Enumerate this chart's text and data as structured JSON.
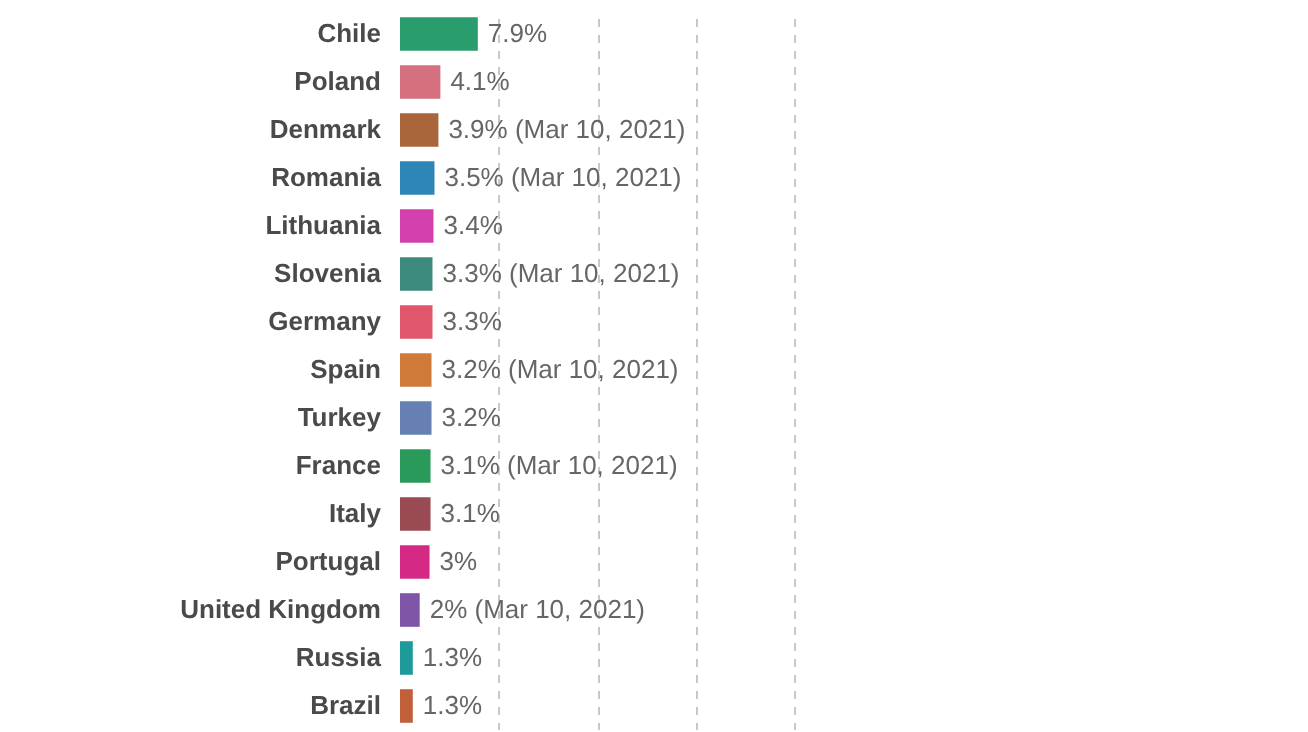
{
  "chart_data": {
    "type": "bar",
    "orientation": "horizontal",
    "categories": [
      "Chile",
      "Poland",
      "Denmark",
      "Romania",
      "Lithuania",
      "Slovenia",
      "Germany",
      "Spain",
      "Turkey",
      "France",
      "Italy",
      "Portugal",
      "United Kingdom",
      "Russia",
      "Brazil"
    ],
    "values": [
      7.9,
      4.1,
      3.9,
      3.5,
      3.4,
      3.3,
      3.3,
      3.2,
      3.2,
      3.1,
      3.1,
      3,
      2,
      1.3,
      1.3
    ],
    "value_labels": [
      "7.9%",
      "4.1%",
      "3.9% (Mar 10, 2021)",
      "3.5% (Mar 10, 2021)",
      "3.4%",
      "3.3% (Mar 10, 2021)",
      "3.3%",
      "3.2% (Mar 10, 2021)",
      "3.2%",
      "3.1% (Mar 10, 2021)",
      "3.1%",
      "3%",
      "2% (Mar 10, 2021)",
      "1.3%",
      "1.3%"
    ],
    "colors": [
      "#2a9d6e",
      "#d4707f",
      "#a8663a",
      "#2e86b8",
      "#d43fae",
      "#3d8a7e",
      "#e0566b",
      "#d07a3a",
      "#6680b3",
      "#2a9a5a",
      "#9a4a52",
      "#d42a85",
      "#7e55a8",
      "#1f9a9a",
      "#c0603a"
    ],
    "xlim": [
      0,
      40
    ],
    "xticks": [
      {
        "value": 10,
        "label": null
      },
      {
        "value": 20,
        "label": null
      },
      {
        "value": 30,
        "label": null
      },
      {
        "value": 40,
        "label": null
      }
    ],
    "grid": "x",
    "tick_labels": "y"
  }
}
